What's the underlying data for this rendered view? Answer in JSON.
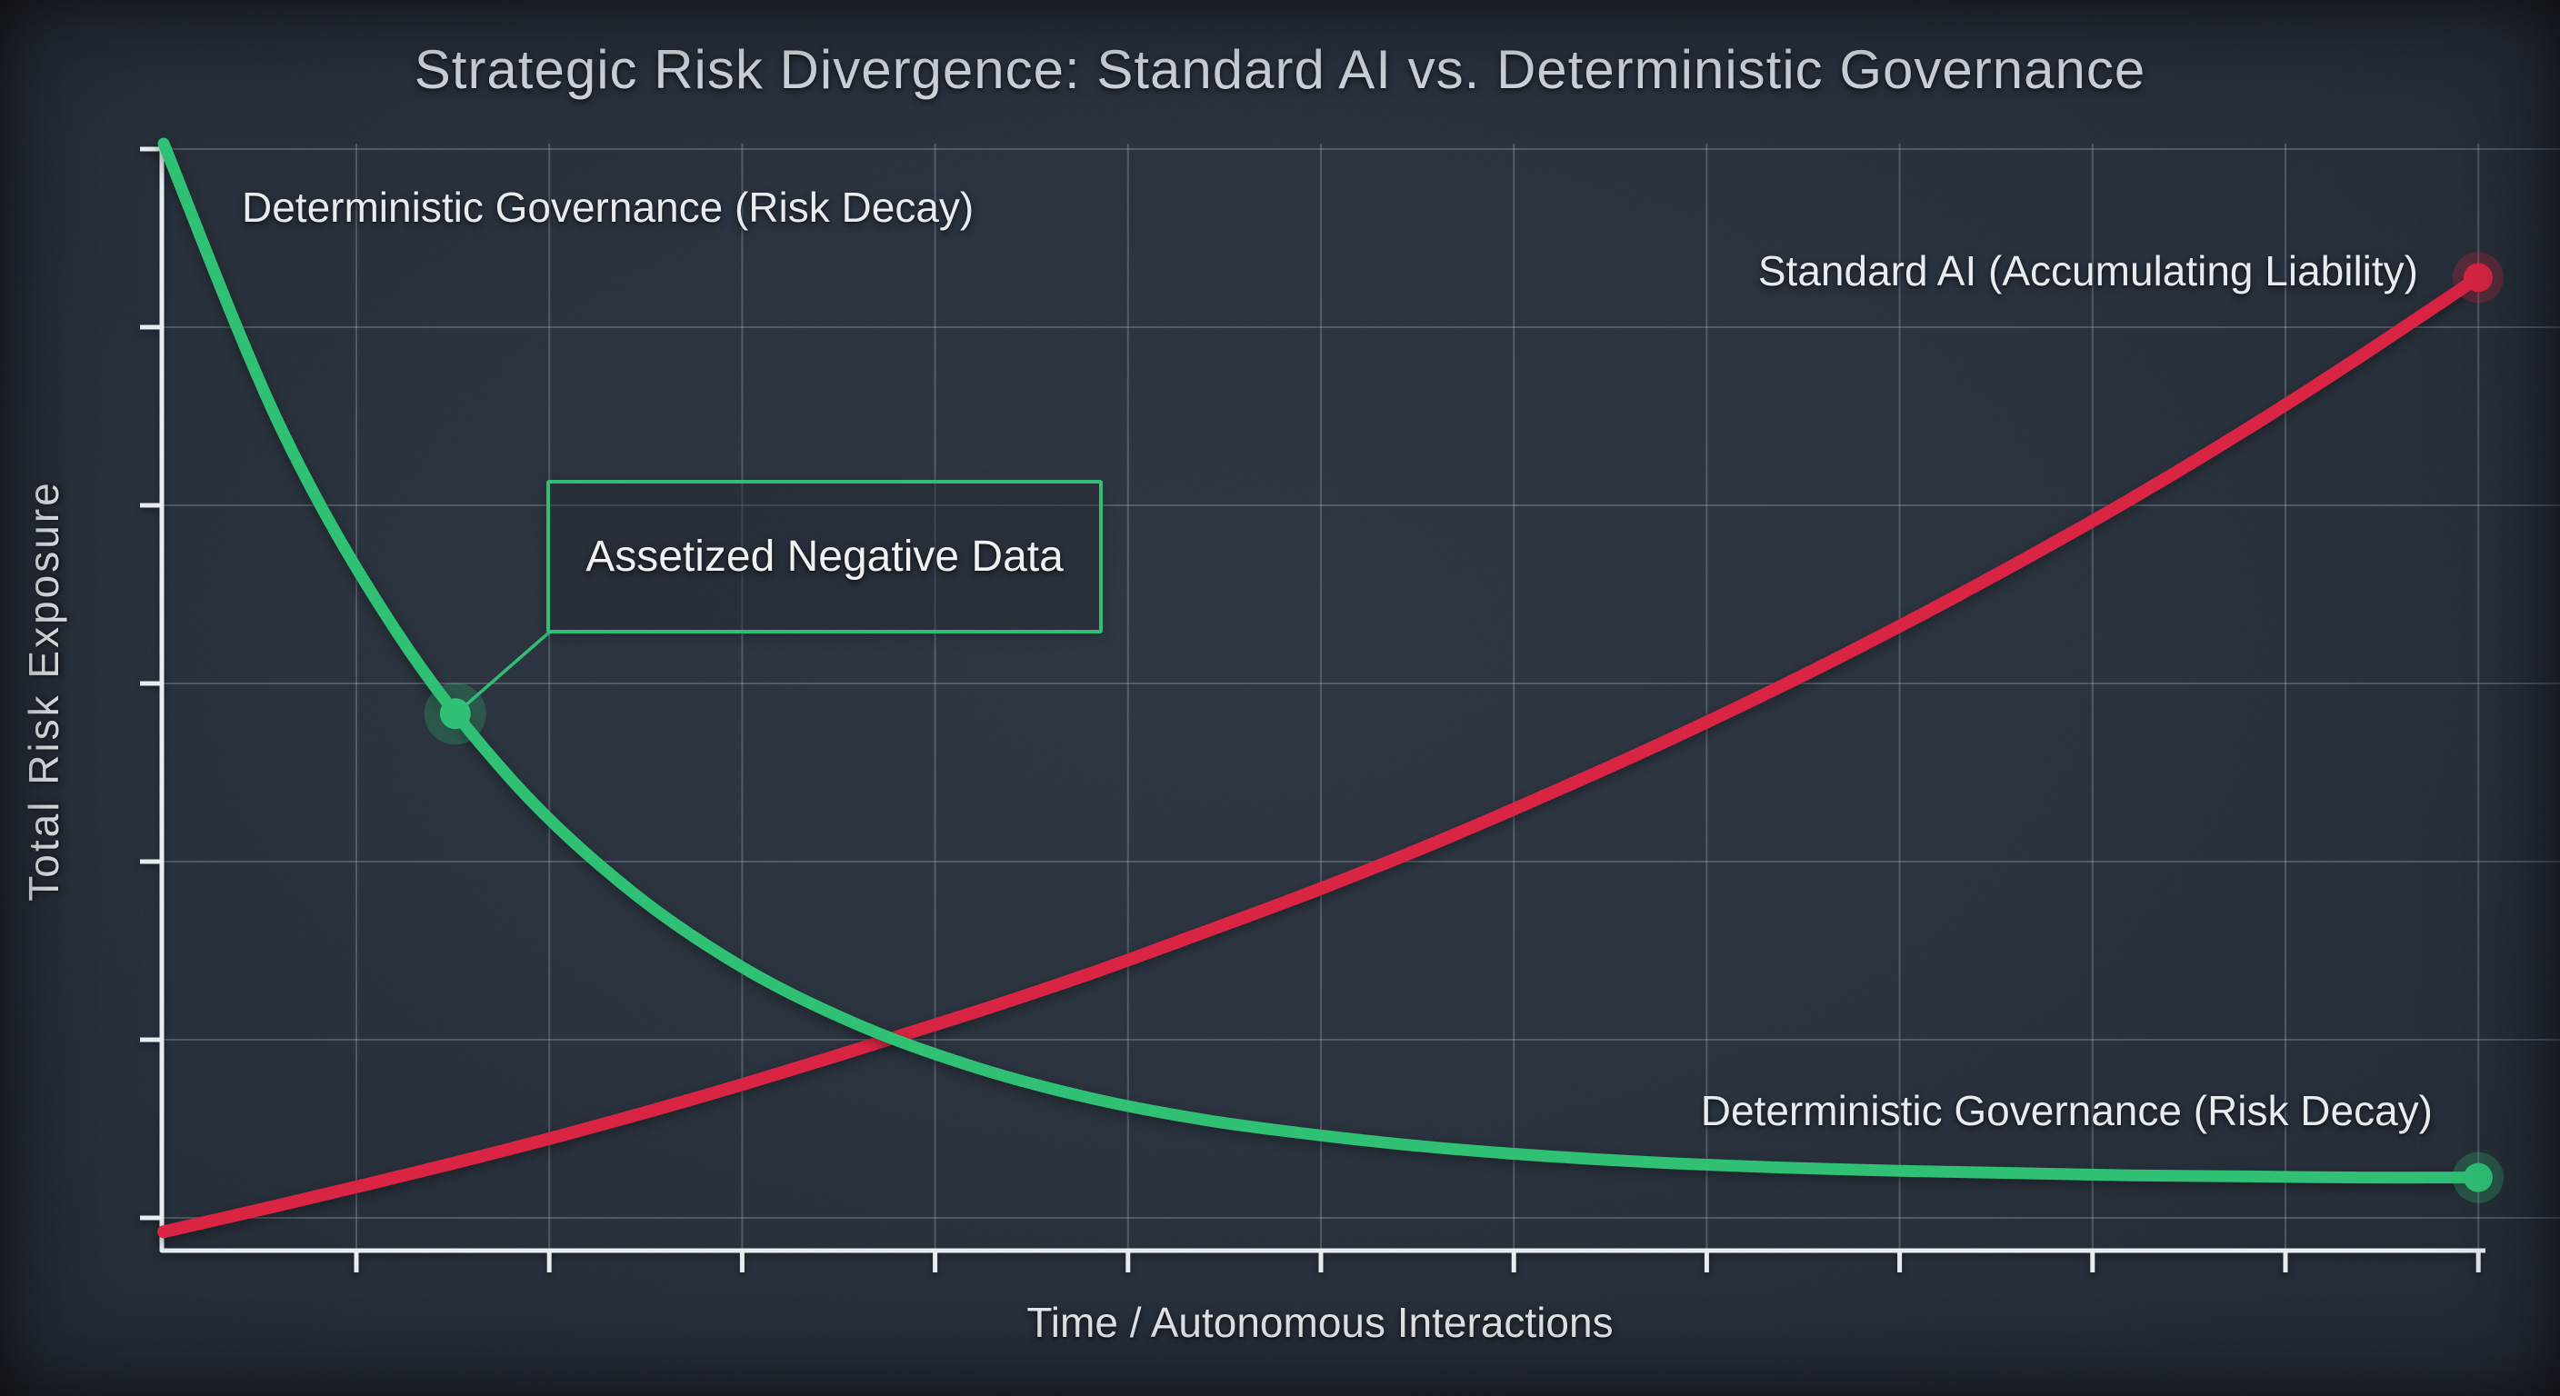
{
  "title": "Strategic Risk Divergence: Standard AI vs. Deterministic Governance",
  "axes": {
    "x_label": "Time / Autonomous Interactions",
    "y_label": "Total Risk Exposure"
  },
  "annotation": {
    "label": "Assetized Negative Data"
  },
  "colors": {
    "background": "#27303c",
    "green": "#2cc173",
    "red": "#da2140",
    "axis": "#e9eef3",
    "grid_rgba": "rgba(172,186,202,0.30)",
    "text": "#e9edf2",
    "title_text": "#d2d8e0"
  },
  "chart_data": {
    "type": "line",
    "title": "Strategic Risk Divergence: Standard AI vs. Deterministic Governance",
    "xlabel": "Time / Autonomous Interactions",
    "ylabel": "Total Risk Exposure",
    "xlim": [
      0,
      1
    ],
    "ylim": [
      0,
      100
    ],
    "grid": true,
    "tick_labels": "none",
    "legend_position": "inline-labels",
    "x": [
      0,
      0.05,
      0.1,
      0.15,
      0.2,
      0.25,
      0.3,
      0.35,
      0.4,
      0.45,
      0.5,
      0.55,
      0.6,
      0.65,
      0.7,
      0.75,
      0.8,
      0.85,
      0.9,
      0.95,
      1.0
    ],
    "series": [
      {
        "name": "Standard AI (Accumulating Liability)",
        "color": "#da2140",
        "shape": "exponential-growth",
        "end_marker": true,
        "values": [
          1.7,
          4.1,
          6.6,
          9.2,
          12.0,
          15.0,
          18.2,
          21.5,
          25.0,
          28.8,
          32.7,
          36.9,
          41.4,
          46.1,
          51.1,
          56.4,
          62.0,
          67.9,
          74.2,
          80.9,
          87.9
        ]
      },
      {
        "name": "Deterministic Governance (Risk Decay)",
        "color": "#2cc173",
        "shape": "exponential-decay",
        "end_marker": true,
        "values": [
          100.0,
          74.6,
          56.1,
          42.6,
          32.8,
          25.6,
          20.4,
          16.6,
          13.8,
          11.8,
          10.4,
          9.3,
          8.5,
          7.9,
          7.5,
          7.2,
          7.0,
          6.8,
          6.7,
          6.6,
          6.6
        ]
      }
    ],
    "annotations": [
      {
        "text": "Assetized Negative Data",
        "series": "Deterministic Governance (Risk Decay)",
        "x": 0.126,
        "y": 48.5
      }
    ]
  }
}
